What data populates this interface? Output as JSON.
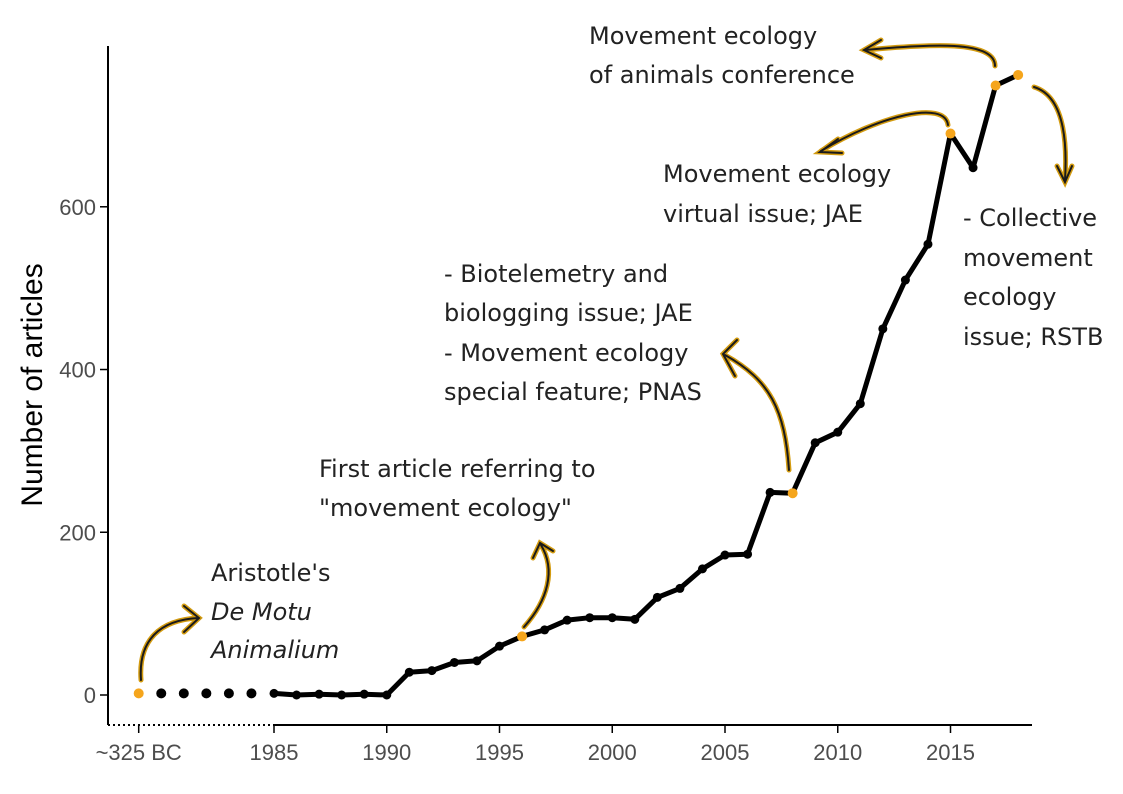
{
  "chart_data": {
    "type": "line",
    "ylabel": "Number of articles",
    "xlabel": "",
    "ylim": [
      0,
      770
    ],
    "yticks": [
      0,
      200,
      400,
      600
    ],
    "xticks": [
      {
        "value": 1979,
        "label": "~325 BC"
      },
      {
        "value": 1985,
        "label": "1985"
      },
      {
        "value": 1990,
        "label": "1990"
      },
      {
        "value": 1995,
        "label": "1995"
      },
      {
        "value": 2000,
        "label": "2000"
      },
      {
        "value": 2005,
        "label": "2005"
      },
      {
        "value": 2010,
        "label": "2010"
      },
      {
        "value": 2015,
        "label": "2015"
      }
    ],
    "gap_points": [
      {
        "x": 1980,
        "y": 2
      },
      {
        "x": 1981,
        "y": 2
      },
      {
        "x": 1982,
        "y": 2
      },
      {
        "x": 1983,
        "y": 2
      },
      {
        "x": 1984,
        "y": 2
      }
    ],
    "series": [
      {
        "x": [
          1985,
          1986,
          1987,
          1988,
          1989,
          1990,
          1991,
          1992,
          1993,
          1994,
          1995,
          1996,
          1997,
          1998,
          1999,
          2000,
          2001,
          2002,
          2003,
          2004,
          2005,
          2006,
          2007,
          2008,
          2009,
          2010,
          2011,
          2012,
          2013,
          2014,
          2015,
          2016,
          2017,
          2018
        ],
        "values": [
          2,
          0,
          1,
          0,
          1,
          0,
          28,
          30,
          40,
          42,
          60,
          72,
          80,
          92,
          95,
          95,
          93,
          120,
          131,
          155,
          172,
          173,
          249,
          248,
          310,
          323,
          358,
          450,
          510,
          554,
          690,
          648,
          749,
          762
        ]
      }
    ],
    "highlight_points": [
      {
        "x": 1979,
        "y": 2
      },
      {
        "x": 1996,
        "y": 72
      },
      {
        "x": 2008,
        "y": 248
      },
      {
        "x": 2015,
        "y": 690
      },
      {
        "x": 2017,
        "y": 749
      },
      {
        "x": 2018,
        "y": 762
      }
    ],
    "colors": {
      "line": "#000000",
      "point": "#000000",
      "highlight": "#f5a51c",
      "arrow_outline": "#d39b10"
    },
    "annotations": {
      "aristotle": {
        "lines": [
          "Aristotle's",
          "De Motu",
          "Animalium"
        ]
      },
      "first_article": {
        "lines": [
          "First article referring to",
          "\"movement ecology\""
        ]
      },
      "biotelemetry": {
        "lines": [
          "- Biotelemetry and",
          "biologging issue; JAE",
          "- Movement ecology",
          "special feature; PNAS"
        ]
      },
      "virtual_issue": {
        "lines": [
          "Movement ecology",
          "virtual issue; JAE"
        ]
      },
      "conference": {
        "lines": [
          "Movement ecology",
          "of animals conference"
        ]
      },
      "collective": {
        "lines": [
          "- Collective",
          "movement",
          "ecology",
          "issue; RSTB"
        ]
      }
    }
  }
}
